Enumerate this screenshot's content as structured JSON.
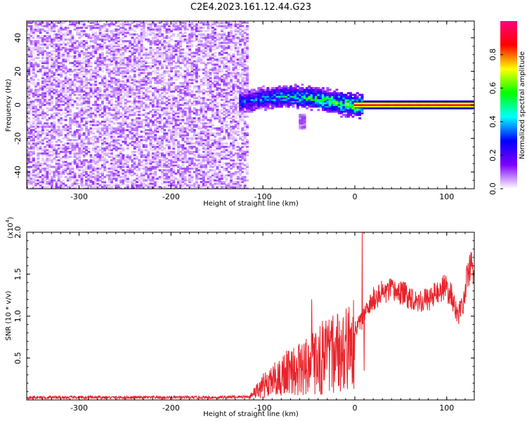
{
  "page_title": "C2E4.2023.161.12.44.G23",
  "chart_data": [
    {
      "type": "heatmap",
      "title": "C2E4.2023.161.12.44.G23",
      "xlabel": "Height of straight line (km)",
      "ylabel": "Frequency (Hz)",
      "xlim": [
        -357,
        130
      ],
      "ylim": [
        -50,
        50
      ],
      "x_ticks": [
        -300,
        -200,
        -100,
        0,
        100
      ],
      "y_ticks": [
        -40,
        -20,
        0,
        20,
        40
      ],
      "x_tick_labels": [
        "-300",
        "-200",
        "-100",
        "0",
        "100"
      ],
      "y_tick_labels": [
        "-40",
        "-20",
        "0",
        "20",
        "40"
      ],
      "colorbar": {
        "label": "Normalized spectral amplitude",
        "range": [
          0,
          1
        ],
        "ticks": [
          0.0,
          0.2,
          0.4,
          0.6,
          0.8
        ],
        "tick_labels": [
          "0.0",
          "0.2",
          "0.4",
          "0.6",
          "0.8"
        ],
        "colormap": [
          "#ffffff",
          "#7f00ff",
          "#0000ff",
          "#00ffff",
          "#00ff00",
          "#ffff00",
          "#ff0000",
          "#ff007f"
        ]
      },
      "regions": [
        {
          "name": "noise",
          "x_range": [
            -357,
            -115
          ],
          "freq_range": [
            -50,
            50
          ],
          "amplitude_range": [
            0.0,
            0.12
          ]
        },
        {
          "name": "turbulent",
          "x_range": [
            -125,
            10
          ],
          "center_freq": 3,
          "freq_spread": 8,
          "amplitude_range": [
            0.1,
            0.8
          ]
        },
        {
          "name": "tone",
          "x_range": [
            0,
            130
          ],
          "center_freq": 0,
          "freq_spread": 1,
          "amplitude_range": [
            0.6,
            0.95
          ]
        },
        {
          "name": "blob",
          "x_range": [
            -60,
            -54
          ],
          "freq_range": [
            -14,
            -6
          ],
          "amplitude_range": [
            0.05,
            0.12
          ]
        }
      ]
    },
    {
      "type": "line",
      "xlabel": "Height of straight line (km)",
      "ylabel": "SNR (10 * v/v)",
      "y_multiplier_label": "(x10",
      "y_multiplier_exp": "4",
      "xlim": [
        -357,
        130
      ],
      "ylim": [
        0,
        20000
      ],
      "x_ticks": [
        -300,
        -200,
        -100,
        0,
        100
      ],
      "y_ticks": [
        5000,
        10000,
        15000,
        20000
      ],
      "x_tick_labels": [
        "-300",
        "-200",
        "-100",
        "0",
        "100"
      ],
      "y_tick_labels": [
        "0.5",
        "1.0",
        "1.5",
        "2.0"
      ],
      "color": "#e8232a",
      "series": [
        {
          "x": [
            -357,
            -300,
            -250,
            -200,
            -150,
            -115,
            -105,
            -95,
            -80,
            -65,
            -50,
            -40,
            -30,
            -20,
            -10,
            0,
            8,
            20,
            30,
            40,
            50,
            60,
            70,
            80,
            90,
            97,
            105,
            112,
            118,
            122,
            127,
            130
          ],
          "values": [
            300,
            300,
            300,
            300,
            300,
            400,
            1500,
            2500,
            3500,
            4300,
            5000,
            6000,
            6500,
            6600,
            7500,
            8500,
            9500,
            12000,
            12800,
            13000,
            12800,
            12300,
            11800,
            12000,
            12800,
            13500,
            12500,
            10000,
            11500,
            14500,
            16000,
            15200
          ]
        }
      ],
      "spikes": [
        {
          "x": 8,
          "value": 20000
        },
        {
          "x": 10,
          "value": 3500
        },
        {
          "x": -47,
          "value": 12000
        },
        {
          "x": 125,
          "value": 17300
        }
      ]
    }
  ]
}
